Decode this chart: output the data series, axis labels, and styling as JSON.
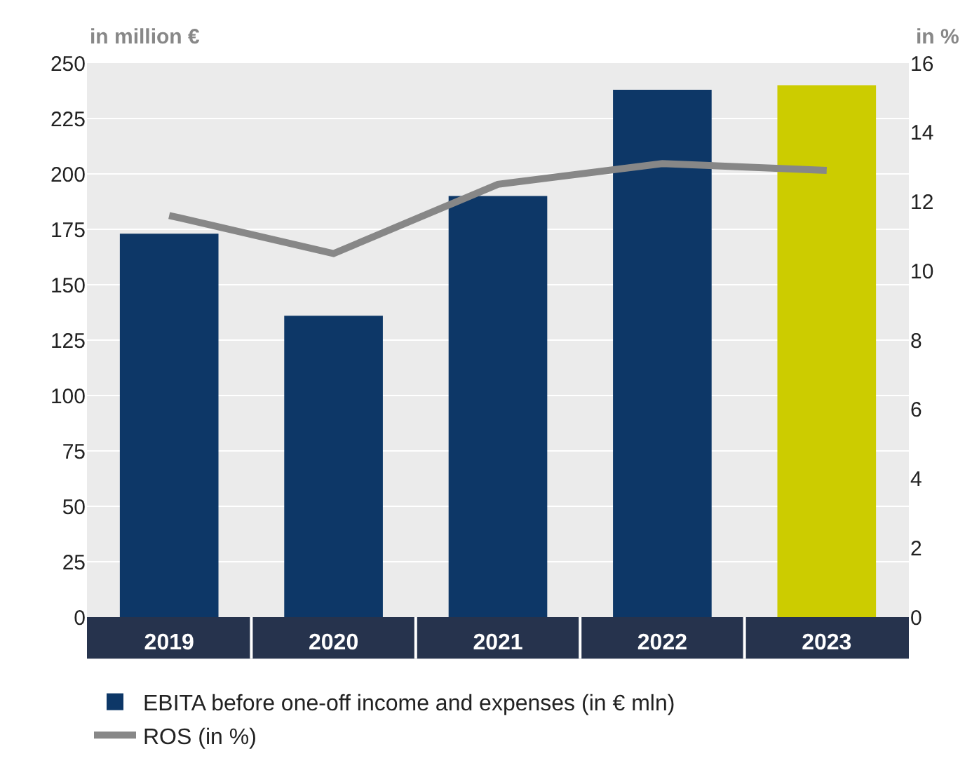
{
  "chart_data": {
    "type": "bar",
    "ylabel": "in million €",
    "y2label": "in %",
    "categories": [
      "2019",
      "2020",
      "2021",
      "2022",
      "2023"
    ],
    "series": [
      {
        "name": "EBITA before one-off income and expenses (in € mln)",
        "color": "#0d3767",
        "colors": [
          "#0d3767",
          "#0d3767",
          "#0d3767",
          "#0d3767",
          "#cccc00"
        ],
        "values": [
          173,
          136,
          190,
          238,
          240
        ]
      },
      {
        "name": "ROS (in %)",
        "type": "line",
        "axis": "y2",
        "color": "#878787",
        "values": [
          11.6,
          10.5,
          12.5,
          13.1,
          12.9
        ]
      }
    ],
    "ylim": [
      0,
      250
    ],
    "yticks": [
      0,
      25,
      50,
      75,
      100,
      125,
      150,
      175,
      200,
      225,
      250
    ],
    "y2lim": [
      0,
      16
    ],
    "y2ticks": [
      0,
      2,
      4,
      6,
      8,
      10,
      12,
      14,
      16
    ],
    "grid": "y",
    "legend": "bottom",
    "marker": "none",
    "line_style": "solid"
  }
}
